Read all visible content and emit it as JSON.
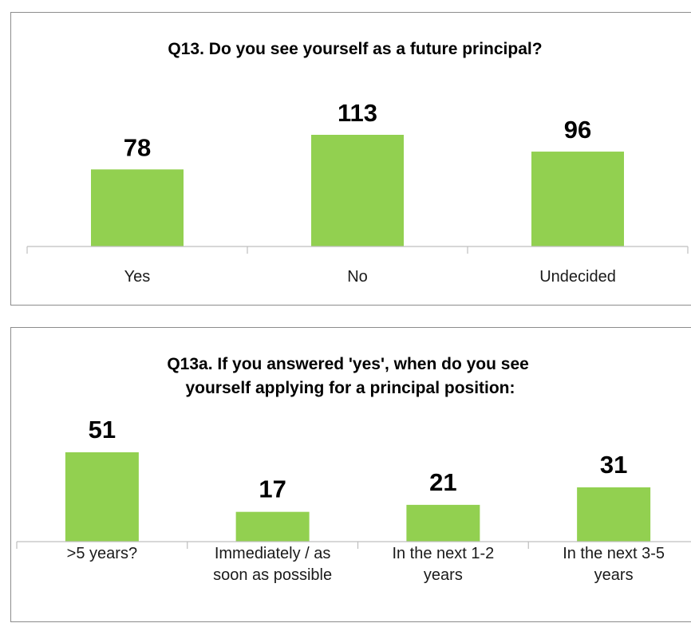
{
  "colors": {
    "bar": "#92d050",
    "axis": "#bfbfbf",
    "text": "#000000",
    "panel_border": "#8c8c8c"
  },
  "chart_data": [
    {
      "type": "bar",
      "title": "Q13. Do you see yourself as a future principal?",
      "categories": [
        "Yes",
        "No",
        "Undecided"
      ],
      "values": [
        78,
        113,
        96
      ],
      "data_labels": [
        "78",
        "113",
        "96"
      ],
      "xlabel": "",
      "ylabel": "",
      "ylim": [
        0,
        113
      ],
      "grid": false,
      "legend": "none"
    },
    {
      "type": "bar",
      "title": "Q13a. If you answered 'yes', when do you see yourself applying for a principal position:",
      "title_lines": [
        "Q13a. If you answered 'yes', when do you see",
        "yourself applying for a principal position:"
      ],
      "categories": [
        ">5 years?",
        "Immediately / as soon as possible",
        "In the next 1-2 years",
        "In the next 3-5 years"
      ],
      "category_lines": [
        [
          ">5 years?"
        ],
        [
          "Immediately / as",
          "soon as possible"
        ],
        [
          "In the next 1-2",
          "years"
        ],
        [
          "In the next 3-5",
          "years"
        ]
      ],
      "values": [
        51,
        17,
        21,
        31
      ],
      "data_labels": [
        "51",
        "17",
        "21",
        "31"
      ],
      "xlabel": "",
      "ylabel": "",
      "ylim": [
        0,
        51
      ],
      "grid": false,
      "legend": "none"
    }
  ]
}
